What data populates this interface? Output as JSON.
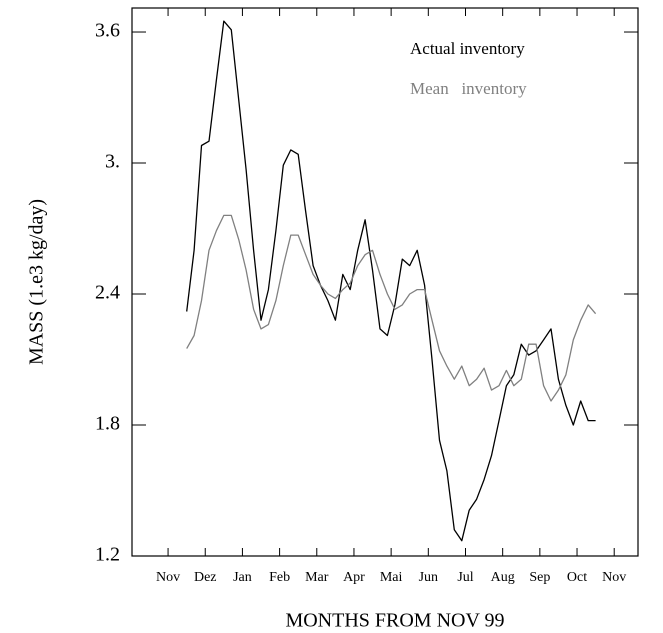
{
  "chart_data": {
    "type": "line",
    "x_label": "MONTHS FROM NOV 99",
    "y_label": "MASS (1.e3 kg/day)",
    "xlim": [
      -0.97,
      12.64
    ],
    "xticks": [
      {
        "value": 0,
        "label": "Nov"
      },
      {
        "value": 1,
        "label": "Dez"
      },
      {
        "value": 2,
        "label": "Jan"
      },
      {
        "value": 3,
        "label": "Feb"
      },
      {
        "value": 4,
        "label": "Mar"
      },
      {
        "value": 5,
        "label": "Apr"
      },
      {
        "value": 6,
        "label": "Mai"
      },
      {
        "value": 7,
        "label": "Jun"
      },
      {
        "value": 8,
        "label": "Jul"
      },
      {
        "value": 9,
        "label": "Aug"
      },
      {
        "value": 10,
        "label": "Sep"
      },
      {
        "value": 11,
        "label": "Oct"
      },
      {
        "value": 12,
        "label": "Nov"
      }
    ],
    "ylim": [
      1.2,
      3.71
    ],
    "yticks": [
      1.2,
      1.8,
      2.4,
      {
        "value": 3,
        "label": "3."
      },
      3.6
    ],
    "legend": "upper right",
    "x": [
      0.5,
      0.7,
      0.9,
      1.1,
      1.3,
      1.5,
      1.7,
      1.9,
      2.1,
      2.3,
      2.5,
      2.7,
      2.9,
      3.1,
      3.3,
      3.5,
      3.7,
      3.9,
      4.1,
      4.3,
      4.5,
      4.7,
      4.9,
      5.1,
      5.3,
      5.5,
      5.7,
      5.9,
      6.1,
      6.3,
      6.5,
      6.7,
      6.9,
      7.1,
      7.3,
      7.5,
      7.7,
      7.9,
      8.1,
      8.3,
      8.5,
      8.7,
      8.9,
      9.1,
      9.3,
      9.5,
      9.7,
      9.9,
      10.1,
      10.3,
      10.5,
      10.7,
      10.9,
      11.1,
      11.3,
      11.5
    ],
    "series": [
      {
        "name": "Actual inventory",
        "color": "#000000",
        "values": [
          2.32,
          2.6,
          3.08,
          3.1,
          3.38,
          3.65,
          3.61,
          3.29,
          2.97,
          2.6,
          2.28,
          2.42,
          2.69,
          2.99,
          3.06,
          3.04,
          2.78,
          2.53,
          2.44,
          2.37,
          2.28,
          2.49,
          2.42,
          2.6,
          2.74,
          2.51,
          2.24,
          2.21,
          2.35,
          2.56,
          2.53,
          2.6,
          2.44,
          2.1,
          1.73,
          1.59,
          1.32,
          1.27,
          1.41,
          1.46,
          1.55,
          1.66,
          1.82,
          1.98,
          2.03,
          2.17,
          2.12,
          2.14,
          2.19,
          2.24,
          2.01,
          1.89,
          1.8,
          1.91,
          1.82,
          1.82
        ]
      },
      {
        "name": "Mean   inventory",
        "color": "#808080",
        "values": [
          2.15,
          2.21,
          2.37,
          2.6,
          2.69,
          2.76,
          2.76,
          2.65,
          2.51,
          2.33,
          2.24,
          2.26,
          2.37,
          2.53,
          2.67,
          2.67,
          2.58,
          2.49,
          2.44,
          2.4,
          2.38,
          2.42,
          2.45,
          2.53,
          2.58,
          2.6,
          2.49,
          2.4,
          2.33,
          2.35,
          2.4,
          2.42,
          2.42,
          2.28,
          2.14,
          2.07,
          2.01,
          2.07,
          1.98,
          2.01,
          2.06,
          1.96,
          1.98,
          2.05,
          1.98,
          2.01,
          2.17,
          2.17,
          1.98,
          1.91,
          1.96,
          2.03,
          2.19,
          2.28,
          2.35,
          2.31
        ]
      }
    ]
  }
}
